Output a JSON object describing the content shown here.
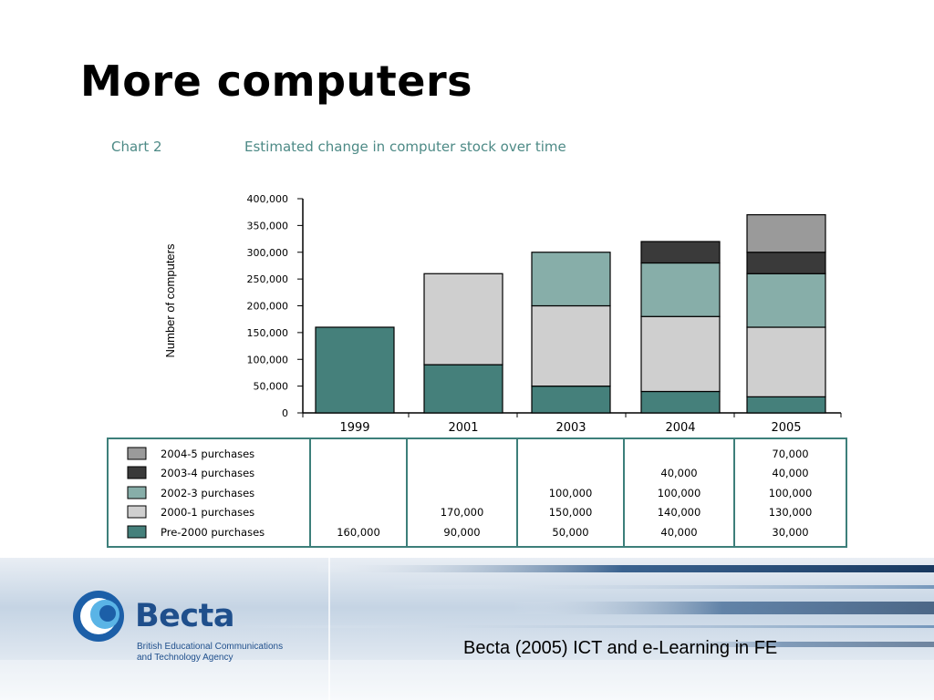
{
  "slide": {
    "title": "More computers"
  },
  "caption": {
    "label": "Chart 2",
    "text": "Estimated change in computer stock over time"
  },
  "footer": {
    "logo_name": "Becta",
    "logo_subtitle_line1": "British Educational Communications",
    "logo_subtitle_line2": "and Technology Agency",
    "citation": "Becta (2005) ICT and e-Learning in FE"
  },
  "colors": {
    "pre2000": "#45807b",
    "y2000_1": "#cfcfcf",
    "y2002_3": "#87aea9",
    "y2003_4": "#3a3a3a",
    "y2004_5": "#9a9a9a",
    "table_border": "#3d7f7a"
  },
  "chart_data": {
    "type": "bar",
    "stacked": true,
    "title": "Estimated change in computer stock over time",
    "ylabel": "Number of computers",
    "xlabel": "",
    "ylim": [
      0,
      400000
    ],
    "yticks": [
      "0",
      "50,000",
      "100,000",
      "150,000",
      "200,000",
      "250,000",
      "300,000",
      "350,000",
      "400,000"
    ],
    "categories": [
      "1999",
      "2001",
      "2003",
      "2004",
      "2005"
    ],
    "series": [
      {
        "name": "Pre-2000 purchases",
        "color_key": "pre2000",
        "values": [
          160000,
          90000,
          50000,
          40000,
          30000
        ],
        "labels": [
          "160,000",
          "90,000",
          "50,000",
          "40,000",
          "30,000"
        ]
      },
      {
        "name": "2000-1 purchases",
        "color_key": "y2000_1",
        "values": [
          0,
          170000,
          150000,
          140000,
          130000
        ],
        "labels": [
          "",
          "170,000",
          "150,000",
          "140,000",
          "130,000"
        ]
      },
      {
        "name": "2002-3 purchases",
        "color_key": "y2002_3",
        "values": [
          0,
          0,
          100000,
          100000,
          100000
        ],
        "labels": [
          "",
          "",
          "100,000",
          "100,000",
          "100,000"
        ]
      },
      {
        "name": "2003-4 purchases",
        "color_key": "y2003_4",
        "values": [
          0,
          0,
          0,
          40000,
          40000
        ],
        "labels": [
          "",
          "",
          "",
          "40,000",
          "40,000"
        ]
      },
      {
        "name": "2004-5 purchases",
        "color_key": "y2004_5",
        "values": [
          0,
          0,
          0,
          0,
          70000
        ],
        "labels": [
          "",
          "",
          "",
          "",
          "70,000"
        ]
      }
    ]
  }
}
